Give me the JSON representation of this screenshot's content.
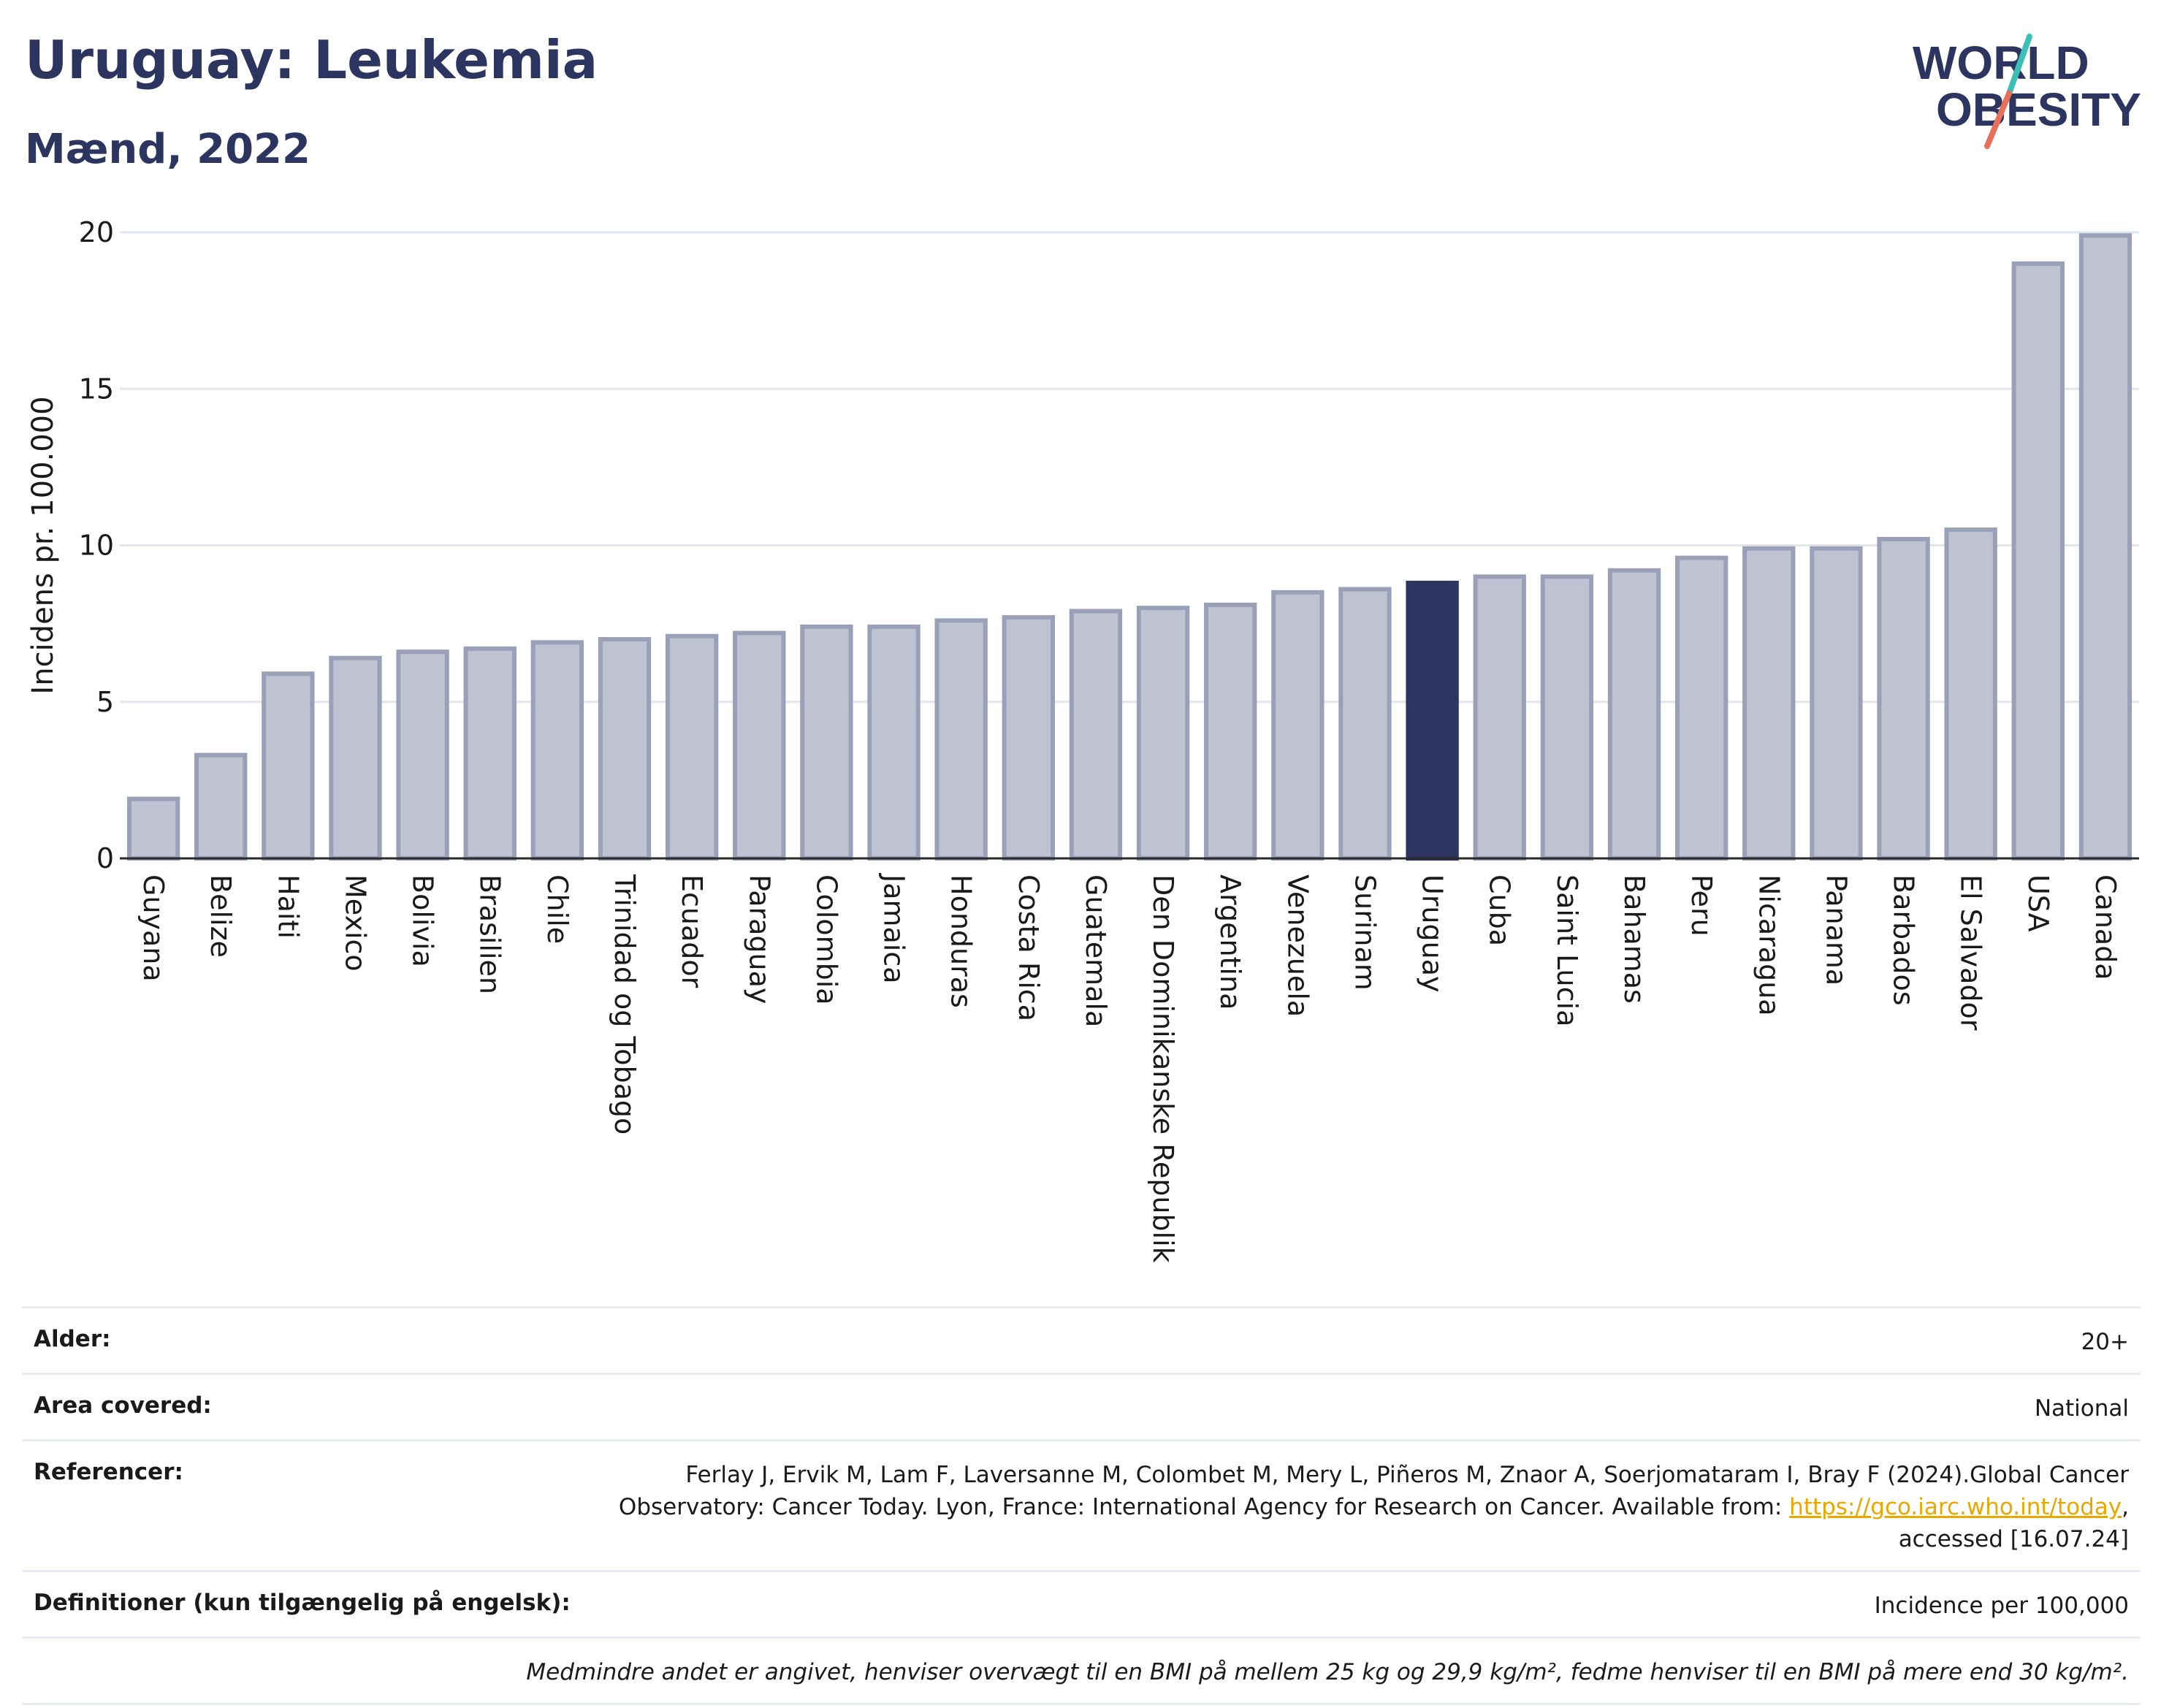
{
  "title": "Uruguay: Leukemia",
  "subtitle": "Mænd, 2022",
  "logo": {
    "line1": "WORLD",
    "line2": "OBESITY"
  },
  "colors": {
    "bar": "#bfc3d1",
    "bar_border": "#9aa0b8",
    "highlight": "#2b3560",
    "grid": "#e3e5ee"
  },
  "chart_data": {
    "type": "bar",
    "categories": [
      "Guyana",
      "Belize",
      "Haiti",
      "Mexico",
      "Bolivia",
      "Brasilien",
      "Chile",
      "Trinidad og Tobago",
      "Ecuador",
      "Paraguay",
      "Colombia",
      "Jamaica",
      "Honduras",
      "Costa Rica",
      "Guatemala",
      "Den Dominikanske Republik",
      "Argentina",
      "Venezuela",
      "Surinam",
      "Uruguay",
      "Cuba",
      "Saint Lucia",
      "Bahamas",
      "Peru",
      "Nicaragua",
      "Panama",
      "Barbados",
      "El Salvador",
      "USA",
      "Canada"
    ],
    "values": [
      1.9,
      3.3,
      5.9,
      6.4,
      6.6,
      6.7,
      6.9,
      7.0,
      7.1,
      7.2,
      7.4,
      7.4,
      7.6,
      7.7,
      7.9,
      8.0,
      8.1,
      8.5,
      8.6,
      8.8,
      9.0,
      9.0,
      9.2,
      9.6,
      9.9,
      9.9,
      10.2,
      10.5,
      19.0,
      19.9
    ],
    "highlight": "Uruguay",
    "ylabel": "Incidens pr. 100.000",
    "ylim": [
      0,
      20
    ],
    "yticks": [
      0,
      5,
      10,
      15,
      20
    ],
    "grid": true
  },
  "info": {
    "age_label": "Alder:",
    "age_value": "20+",
    "area_label": "Area covered:",
    "area_value": "National",
    "ref_label": "Referencer:",
    "ref_line1": "Ferlay J, Ervik M, Lam F, Laversanne M, Colombet M, Mery L, Piñeros M, Znaor A, Soerjomataram I, Bray F (2024).Global Cancer",
    "ref_line2": "Observatory: Cancer Today. Lyon, France: International Agency for Research on Cancer. Available from: ",
    "ref_link": "https://gco.iarc.who.int/today",
    "ref_line2_end": ",",
    "ref_line3": "accessed [16.07.24]",
    "def_label": "Definitioner (kun tilgængelig på engelsk):",
    "def_value": "Incidence per 100,000",
    "note": "Medmindre andet er angivet, henviser overvægt til en BMI på mellem 25 kg og 29,9 kg/m², fedme henviser til en BMI på mere end 30 kg/m²."
  }
}
